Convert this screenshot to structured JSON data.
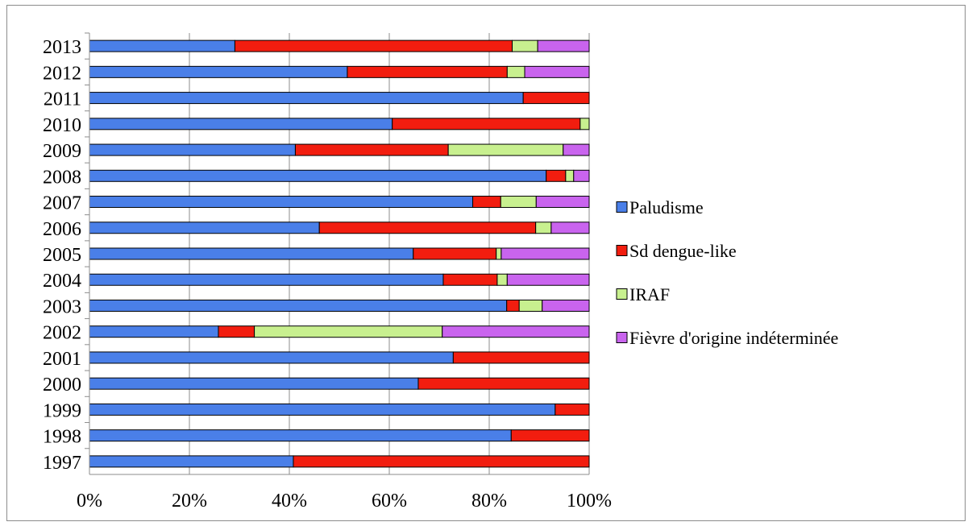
{
  "chart_data": {
    "type": "bar",
    "orientation": "horizontal",
    "stacked": "percent",
    "title": "",
    "xlabel": "",
    "ylabel": "",
    "xlim": [
      0,
      100
    ],
    "x_ticks": [
      "0%",
      "20%",
      "40%",
      "60%",
      "80%",
      "100%"
    ],
    "grid": "vertical",
    "legend_position": "right",
    "categories": [
      "1997",
      "1998",
      "1999",
      "2000",
      "2001",
      "2002",
      "2003",
      "2004",
      "2005",
      "2006",
      "2007",
      "2008",
      "2009",
      "2010",
      "2011",
      "2012",
      "2013"
    ],
    "series": [
      {
        "name": "Paludisme",
        "color": "#4a7fe8",
        "values": [
          40.8,
          84.4,
          93.2,
          65.8,
          72.8,
          25.8,
          83.5,
          70.8,
          64.8,
          46,
          76.7,
          91.4,
          41.2,
          60.6,
          86.8,
          51.6,
          29.1
        ]
      },
      {
        "name": "Sd dengue-like",
        "color": "#f21d0f",
        "values": [
          59.2,
          15.6,
          6.8,
          34.2,
          27.2,
          7.2,
          2.5,
          10.8,
          16.6,
          43.3,
          5.6,
          3.9,
          30.6,
          37.6,
          13.2,
          32,
          55.5
        ]
      },
      {
        "name": "IRAF",
        "color": "#c8f08f",
        "values": [
          0,
          0,
          0,
          0,
          0,
          37.6,
          4.6,
          2,
          1,
          3.1,
          7.1,
          1.6,
          23,
          1.8,
          0,
          3.5,
          5.1
        ]
      },
      {
        "name": "Fièvre d'origine indéterminée",
        "color": "#c964ee",
        "values": [
          0,
          0,
          0,
          0,
          0,
          29.4,
          9.4,
          16.4,
          17.6,
          7.6,
          10.6,
          3.1,
          5.2,
          0,
          0,
          12.9,
          10.3
        ]
      }
    ]
  }
}
